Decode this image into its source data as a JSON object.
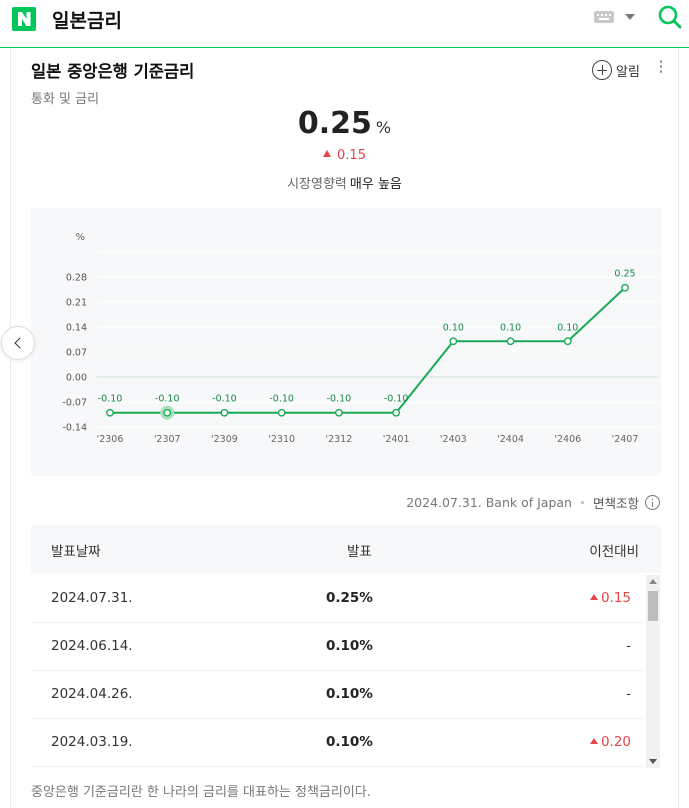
{
  "header": {
    "query": "일본금리",
    "icons": [
      "naver-logo",
      "keyboard-icon",
      "chevron-down-icon",
      "search-icon"
    ],
    "accent_color": "#03c75a"
  },
  "card": {
    "title": "일본 중앙은행 기준금리",
    "subtitle": "통화 및 금리",
    "alarm_label": "알림",
    "rate_value": "0.25",
    "rate_unit": "%",
    "rate_change": "0.15",
    "impact_label": "시장영향력",
    "impact_value": "매우 높음",
    "up_color": "#e64545"
  },
  "chart_data": {
    "type": "line",
    "ylabel": "%",
    "categories": [
      "'2306",
      "'2307",
      "'2309",
      "'2310",
      "'2312",
      "'2401",
      "'2403",
      "'2404",
      "'2406",
      "'2407"
    ],
    "values": [
      -0.1,
      -0.1,
      -0.1,
      -0.1,
      -0.1,
      -0.1,
      0.1,
      0.1,
      0.1,
      0.25
    ],
    "point_labels": [
      "-0.10",
      "-0.10",
      "-0.10",
      "-0.10",
      "-0.10",
      "-0.10",
      "0.10",
      "0.10",
      "0.10",
      "0.25"
    ],
    "yticks": [
      "0.28",
      "0.21",
      "0.14",
      "0.07",
      "0.00",
      "-0.07",
      "-0.14"
    ],
    "ytick_values": [
      0.28,
      0.21,
      0.14,
      0.07,
      0.0,
      -0.07,
      -0.14
    ],
    "ylim": [
      -0.14,
      0.28
    ],
    "highlighted_index": 1,
    "grid": true,
    "line_color": "#1aaa55"
  },
  "source": {
    "text": "2024.07.31. Bank of Japan",
    "disclaimer": "면책조항"
  },
  "table": {
    "headers": {
      "date": "발표날짜",
      "rate": "발표",
      "prev": "이전대비"
    },
    "rows": [
      {
        "date": "2024.07.31.",
        "rate": "0.25%",
        "prev": "0.15",
        "up": true
      },
      {
        "date": "2024.06.14.",
        "rate": "0.10%",
        "prev": "-",
        "up": false
      },
      {
        "date": "2024.04.26.",
        "rate": "0.10%",
        "prev": "-",
        "up": false
      },
      {
        "date": "2024.03.19.",
        "rate": "0.10%",
        "prev": "0.20",
        "up": true
      }
    ]
  },
  "footnote": "중앙은행 기준금리란 한 나라의 금리를 대표하는 정책금리이다."
}
